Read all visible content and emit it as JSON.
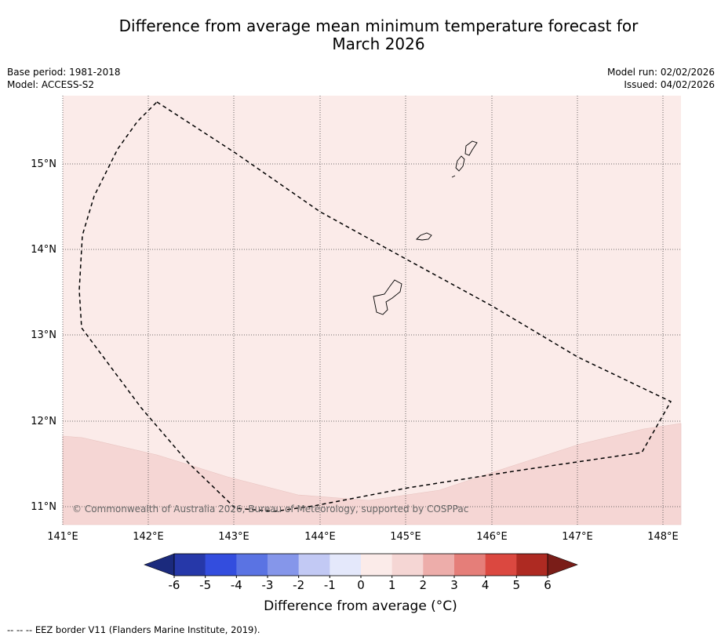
{
  "title_line1": "Difference from average mean minimum temperature forecast for",
  "title_line2": "March 2026",
  "base_period": "Base period: 1981-2018",
  "model": "Model: ACCESS-S2",
  "model_run": "Model run: 02/02/2026",
  "issued": "Issued: 04/02/2026",
  "copyright": "© Commonwealth of Australia 2026, Bureau of Meteorology, supported by COSPPac",
  "map": {
    "lon_labels": [
      "141°E",
      "142°E",
      "143°E",
      "144°E",
      "145°E",
      "146°E",
      "147°E",
      "148°E"
    ],
    "lat_labels": [
      "15°N",
      "14°N",
      "13°N",
      "12°N",
      "11°N"
    ],
    "lon_range": [
      141.0,
      148.2
    ],
    "lat_range": [
      10.8,
      15.8
    ],
    "regions": [
      {
        "name": "0 to 1 °C",
        "color": "#fbebe9"
      },
      {
        "name": "1 to 2 °C",
        "color": "#f5d6d4"
      }
    ]
  },
  "colorbar": {
    "label": "Difference from average (°C)",
    "ticks": [
      "-6",
      "-5",
      "-4",
      "-3",
      "-2",
      "-1",
      "0",
      "1",
      "2",
      "3",
      "4",
      "5",
      "6"
    ],
    "colors": [
      "#2638a9",
      "#334dde",
      "#5a73e3",
      "#8596ea",
      "#c2c9f4",
      "#e4e8fb",
      "#fbebe9",
      "#f5d6d4",
      "#edadaa",
      "#e57e79",
      "#db4840",
      "#ae2a22"
    ],
    "low_extend_color": "#1b2a7d",
    "high_extend_color": "#7a1d18"
  },
  "legend_footer": "-- -- -- EEZ border V11 (Flanders Marine Institute, 2019)."
}
